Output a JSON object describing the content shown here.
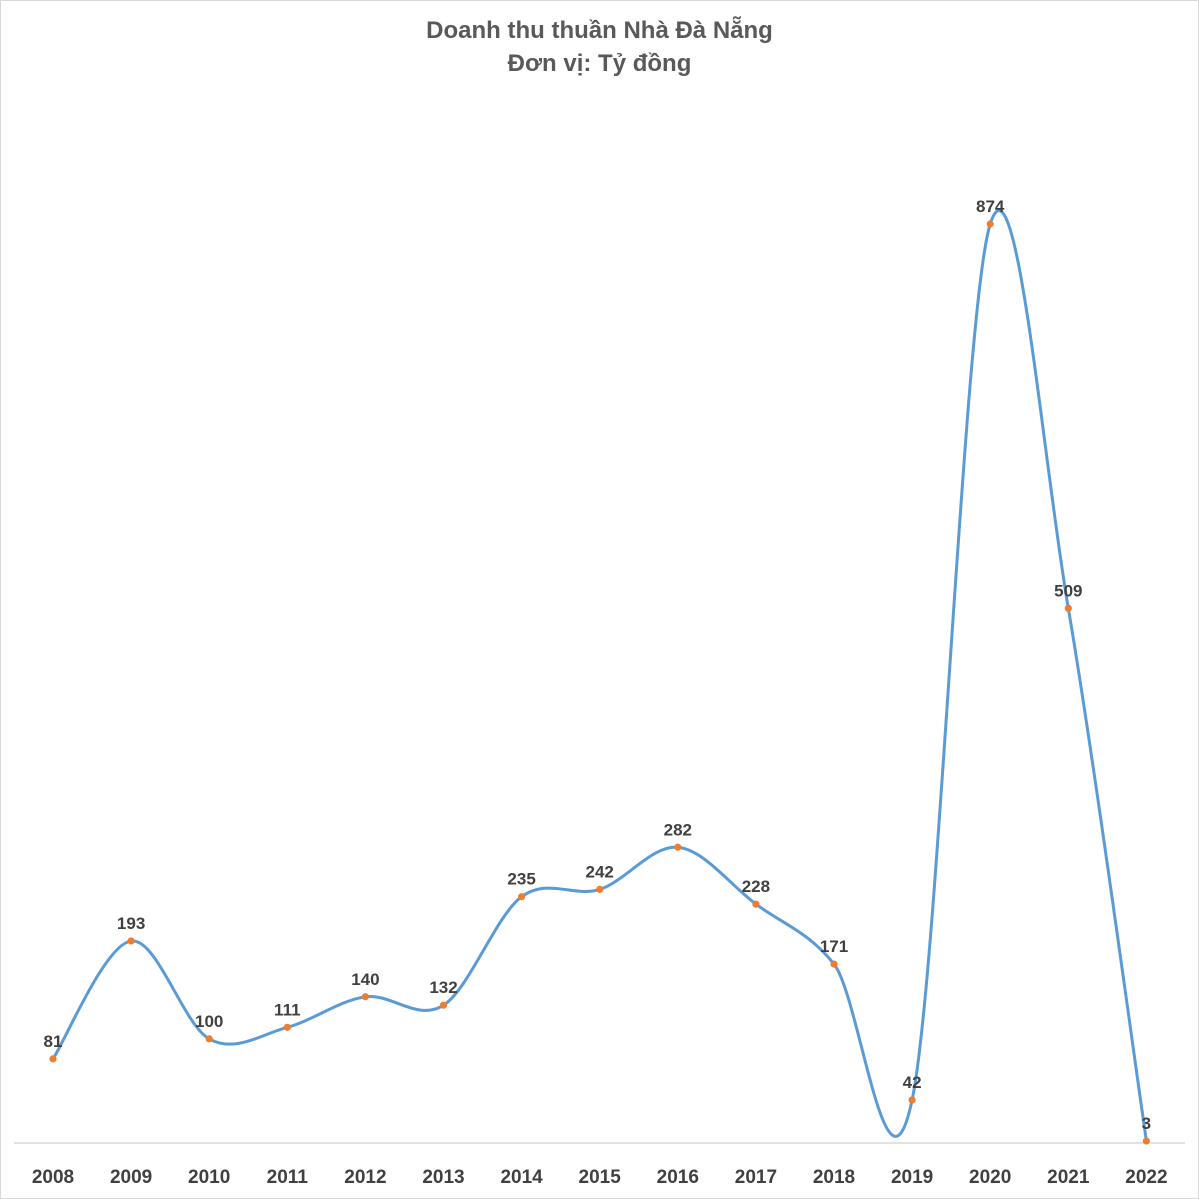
{
  "chart_data": {
    "type": "line",
    "title": "Doanh thu thuần Nhà Đà Nẵng",
    "subtitle": "Đơn vị: Tỷ đồng",
    "categories": [
      "2008",
      "2009",
      "2010",
      "2011",
      "2012",
      "2013",
      "2014",
      "2015",
      "2016",
      "2017",
      "2018",
      "2019",
      "2020",
      "2021",
      "2022"
    ],
    "series": [
      {
        "values": [
          81,
          193,
          100,
          111,
          140,
          132,
          235,
          242,
          282,
          228,
          171,
          42,
          874,
          509,
          3
        ]
      }
    ],
    "data_labels": [
      "81",
      "193",
      "100",
      "111",
      "140",
      "132",
      "235",
      "242",
      "282",
      "228",
      "171",
      "42",
      "874",
      "509",
      "3"
    ],
    "ylim": [
      0,
      1000
    ],
    "smooth": true,
    "grid": false,
    "legend": "none",
    "colors": {
      "line": "#5b9bd5",
      "marker": "#ed7d31",
      "axis": "#d9d9d9",
      "text": "#404040",
      "title": "#595959"
    }
  }
}
